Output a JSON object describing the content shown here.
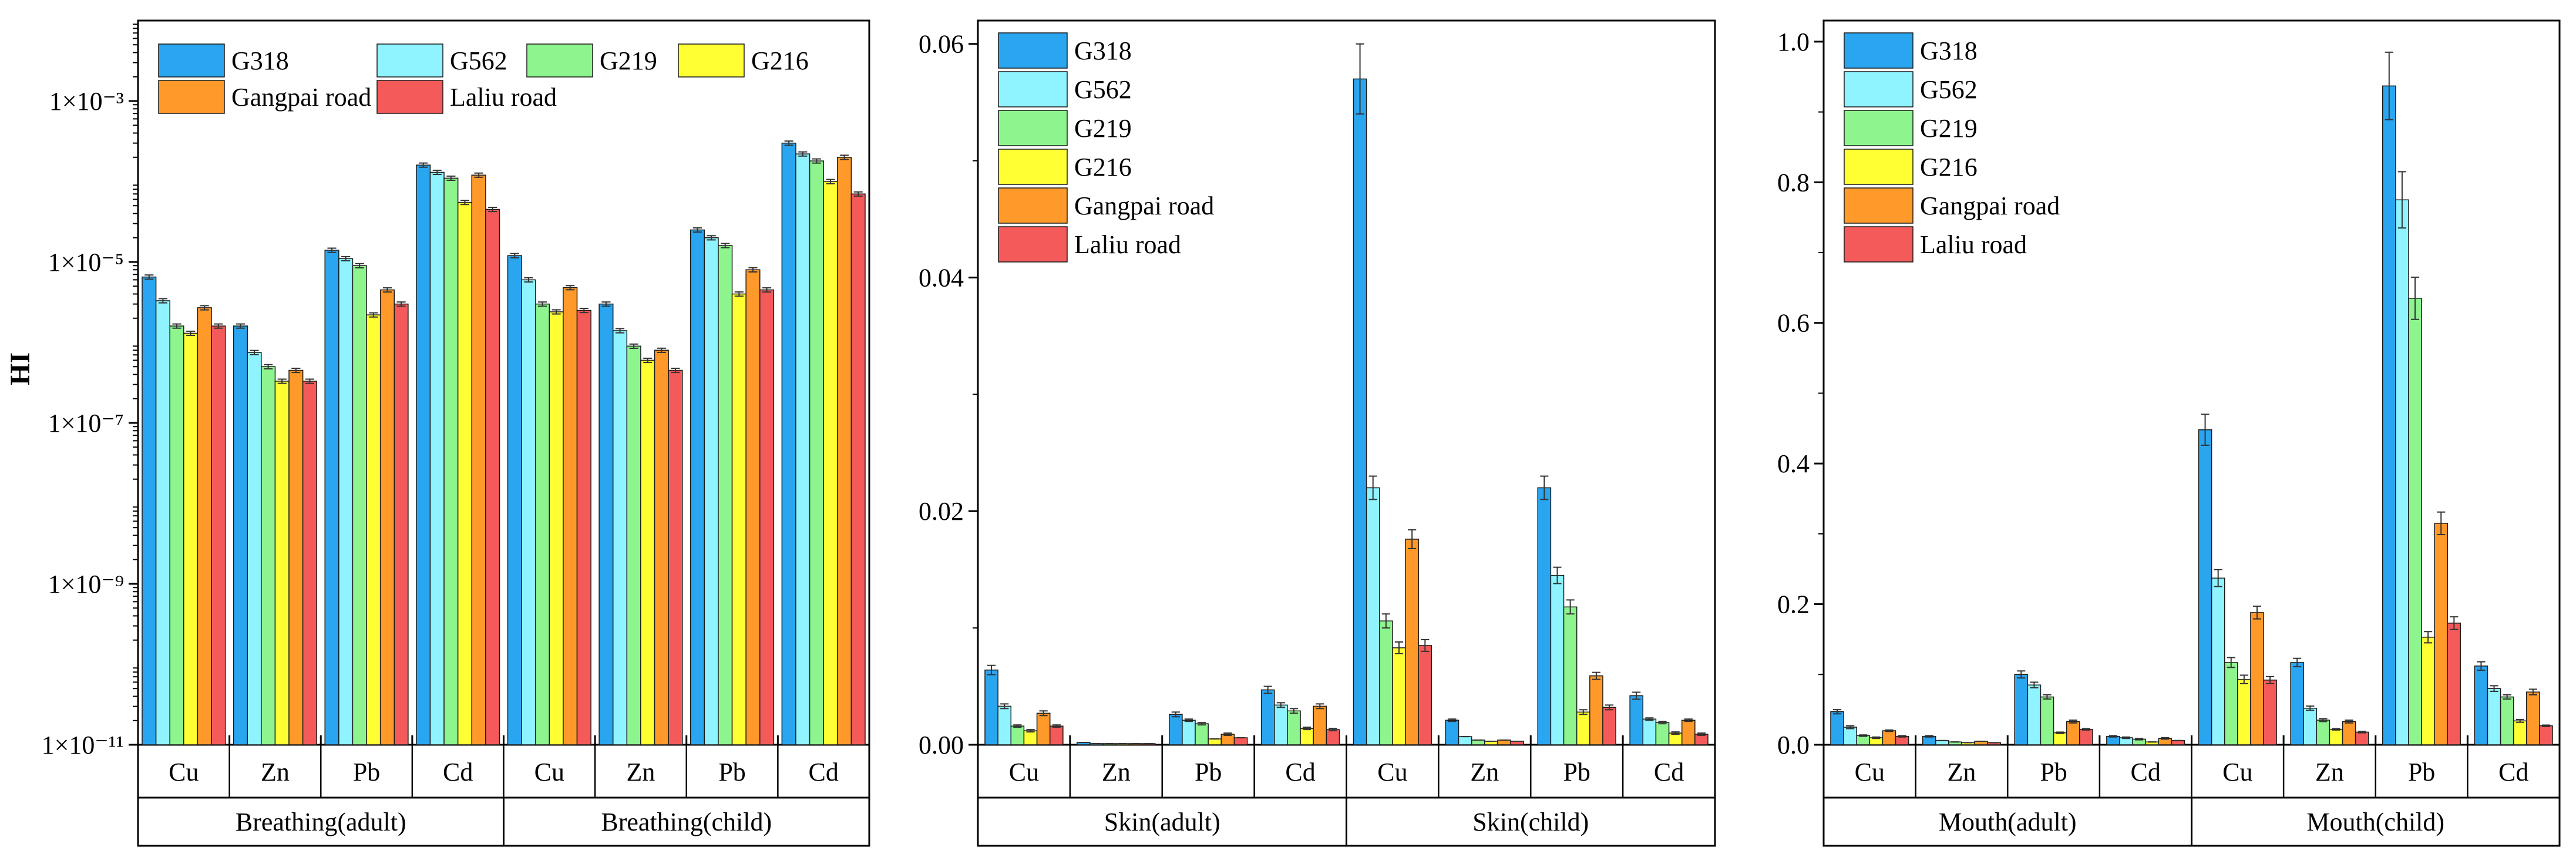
{
  "colors": {
    "G318": "#2aa6f0",
    "G562": "#8ff4ff",
    "G219": "#8ef58e",
    "G216": "#ffff33",
    "Gangpai road": "#ff9a2a",
    "Laliu road": "#f55a5a"
  },
  "chart_data": [
    {
      "type": "bar",
      "scale": "log",
      "ylabel": "HI",
      "yticks": [
        "1×10⁻¹¹",
        "1×10⁻⁹",
        "1×10⁻⁷",
        "1×10⁻⁵",
        "1×10⁻³"
      ],
      "ytick_values": [
        1e-11,
        1e-09,
        1e-07,
        1e-05,
        0.001
      ],
      "ylim": [
        1e-11,
        0.01
      ],
      "legend": [
        "G318",
        "G562",
        "G219",
        "G216",
        "Gangpai road",
        "Laliu road"
      ],
      "legend_position": "top-left, 4 columns",
      "categories": [
        "Cu",
        "Zn",
        "Pb",
        "Cd",
        "Cu",
        "Zn",
        "Pb",
        "Cd"
      ],
      "groups": [
        "Breathing(adult)",
        "Breathing(child)"
      ],
      "series": [
        {
          "name": "G318",
          "values": [
            6.5e-06,
            1.6e-06,
            1.4e-05,
            0.00016,
            1.2e-05,
            3e-06,
            2.5e-05,
            0.0003
          ]
        },
        {
          "name": "G562",
          "values": [
            3.3e-06,
            7.5e-07,
            1.1e-05,
            0.00013,
            6e-06,
            1.4e-06,
            2e-05,
            0.00022
          ]
        },
        {
          "name": "G219",
          "values": [
            1.6e-06,
            5e-07,
            9e-06,
            0.00011,
            3e-06,
            9e-07,
            1.6e-05,
            0.00018
          ]
        },
        {
          "name": "G216",
          "values": [
            1.3e-06,
            3.3e-07,
            2.2e-06,
            5.5e-05,
            2.4e-06,
            6e-07,
            4e-06,
            0.0001
          ]
        },
        {
          "name": "Gangpai road",
          "values": [
            2.7e-06,
            4.5e-07,
            4.5e-06,
            0.00012,
            4.8e-06,
            8e-07,
            8e-06,
            0.0002
          ]
        },
        {
          "name": "Laliu road",
          "values": [
            1.6e-06,
            3.3e-07,
            3e-06,
            4.5e-05,
            2.5e-06,
            4.5e-07,
            4.5e-06,
            7e-05
          ]
        }
      ]
    },
    {
      "type": "bar",
      "scale": "linear",
      "yticks": [
        "0.00",
        "0.02",
        "0.04",
        "0.06"
      ],
      "ytick_values": [
        0,
        0.02,
        0.04,
        0.06
      ],
      "ylim": [
        0,
        0.062
      ],
      "legend": [
        "G318",
        "G562",
        "G219",
        "G216",
        "Gangpai road",
        "Laliu road"
      ],
      "legend_position": "top-left, 1 column",
      "categories": [
        "Cu",
        "Zn",
        "Pb",
        "Cd",
        "Cu",
        "Zn",
        "Pb",
        "Cd"
      ],
      "groups": [
        "Skin(adult)",
        "Skin(child)"
      ],
      "series": [
        {
          "name": "G318",
          "values": [
            0.0064,
            0.0002,
            0.0026,
            0.0047,
            0.057,
            0.0021,
            0.022,
            0.0042
          ],
          "errors": [
            0.0004,
            0,
            0.0002,
            0.0003,
            0.003,
            0.0001,
            0.001,
            0.0003
          ]
        },
        {
          "name": "G562",
          "values": [
            0.0033,
            0.0001,
            0.0021,
            0.0034,
            0.022,
            0.0007,
            0.0145,
            0.0022
          ],
          "errors": [
            0.0002,
            0,
            0.0001,
            0.0002,
            0.001,
            0,
            0.0007,
            0.0001
          ]
        },
        {
          "name": "G219",
          "values": [
            0.0016,
            0.0001,
            0.0018,
            0.0029,
            0.0106,
            0.0004,
            0.0118,
            0.0019
          ],
          "errors": [
            0.0001,
            0,
            0.0001,
            0.0002,
            0.0006,
            0,
            0.0006,
            0.0001
          ]
        },
        {
          "name": "G216",
          "values": [
            0.0012,
            0.0001,
            0.0005,
            0.0014,
            0.0083,
            0.0003,
            0.0028,
            0.001
          ],
          "errors": [
            0.0001,
            0,
            0,
            0.0001,
            0.0005,
            0,
            0.0002,
            0.0001
          ]
        },
        {
          "name": "Gangpai road",
          "values": [
            0.0027,
            0.0001,
            0.0009,
            0.0033,
            0.0176,
            0.0004,
            0.0059,
            0.0021
          ],
          "errors": [
            0.0002,
            0,
            0.0001,
            0.0002,
            0.0008,
            0,
            0.0003,
            0.0001
          ]
        },
        {
          "name": "Laliu road",
          "values": [
            0.0016,
            0.0001,
            0.0006,
            0.0013,
            0.0085,
            0.0003,
            0.0032,
            0.0009
          ],
          "errors": [
            0.0001,
            0,
            0,
            0.0001,
            0.0005,
            0,
            0.0002,
            0.0001
          ]
        }
      ]
    },
    {
      "type": "bar",
      "scale": "linear",
      "yticks": [
        "0.0",
        "0.2",
        "0.4",
        "0.6",
        "0.8",
        "1.0"
      ],
      "ytick_values": [
        0,
        0.2,
        0.4,
        0.6,
        0.8,
        1.0
      ],
      "ylim": [
        0,
        1.03
      ],
      "legend": [
        "G318",
        "G562",
        "G219",
        "G216",
        "Gangpai road",
        "Laliu road"
      ],
      "legend_position": "top-left, 1 column",
      "categories": [
        "Cu",
        "Zn",
        "Pb",
        "Cd",
        "Cu",
        "Zn",
        "Pb",
        "Cd"
      ],
      "groups": [
        "Mouth(adult)",
        "Mouth(child)"
      ],
      "series": [
        {
          "name": "G318",
          "values": [
            0.047,
            0.012,
            0.1,
            0.012,
            0.448,
            0.117,
            0.937,
            0.112
          ],
          "errors": [
            0.003,
            0.001,
            0.005,
            0.001,
            0.022,
            0.006,
            0.048,
            0.006
          ]
        },
        {
          "name": "G562",
          "values": [
            0.025,
            0.006,
            0.085,
            0.01,
            0.237,
            0.052,
            0.775,
            0.08
          ],
          "errors": [
            0.002,
            0,
            0.004,
            0.001,
            0.012,
            0.003,
            0.04,
            0.004
          ]
        },
        {
          "name": "G219",
          "values": [
            0.013,
            0.004,
            0.068,
            0.008,
            0.117,
            0.035,
            0.635,
            0.068
          ],
          "errors": [
            0.001,
            0,
            0.003,
            0.001,
            0.007,
            0.002,
            0.03,
            0.003
          ]
        },
        {
          "name": "G216",
          "values": [
            0.01,
            0.003,
            0.017,
            0.004,
            0.093,
            0.022,
            0.153,
            0.034
          ],
          "errors": [
            0.001,
            0,
            0.001,
            0,
            0.006,
            0.001,
            0.008,
            0.002
          ]
        },
        {
          "name": "Gangpai road",
          "values": [
            0.02,
            0.005,
            0.033,
            0.009,
            0.188,
            0.033,
            0.315,
            0.075
          ],
          "errors": [
            0.001,
            0,
            0.002,
            0.001,
            0.009,
            0.002,
            0.016,
            0.004
          ]
        },
        {
          "name": "Laliu road",
          "values": [
            0.012,
            0.003,
            0.022,
            0.006,
            0.092,
            0.018,
            0.173,
            0.027
          ],
          "errors": [
            0.001,
            0,
            0.001,
            0,
            0.005,
            0.001,
            0.009,
            0.001
          ]
        }
      ]
    }
  ]
}
